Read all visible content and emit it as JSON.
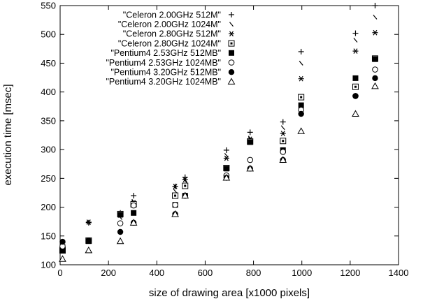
{
  "chart_data": {
    "type": "scatter",
    "xlabel": "size of drawing area [x1000 pixels]",
    "ylabel": "execution time [msec]",
    "xlim": [
      0,
      1400
    ],
    "ylim": [
      100,
      550
    ],
    "xticks": [
      0,
      200,
      400,
      600,
      800,
      1000,
      1200,
      1400
    ],
    "yticks": [
      100,
      150,
      200,
      250,
      300,
      350,
      400,
      450,
      500,
      550
    ],
    "grid": false,
    "legend_position": "top-left",
    "series": [
      {
        "name": "\"Celeron 2.00GHz 512M\"",
        "marker": "plus",
        "points": [
          [
            10,
            138
          ],
          [
            118,
            173
          ],
          [
            249,
            190
          ],
          [
            304,
            220
          ],
          [
            476,
            236
          ],
          [
            517,
            252
          ],
          [
            688,
            299
          ],
          [
            786,
            330
          ],
          [
            922,
            348
          ],
          [
            997,
            470
          ],
          [
            1222,
            502
          ],
          [
            1303,
            550
          ]
        ]
      },
      {
        "name": "\"Celeron 2.00GHz 1024M\"",
        "marker": "dash",
        "points": [
          [
            10,
            130
          ],
          [
            118,
            173
          ],
          [
            249,
            182
          ],
          [
            304,
            210
          ],
          [
            476,
            228
          ],
          [
            517,
            246
          ],
          [
            688,
            290
          ],
          [
            786,
            320
          ],
          [
            922,
            338
          ],
          [
            997,
            450
          ],
          [
            1222,
            490
          ],
          [
            1303,
            530
          ]
        ]
      },
      {
        "name": "\"Celeron 2.80GHz 512M\"",
        "marker": "asterisk",
        "points": [
          [
            10,
            135
          ],
          [
            118,
            174
          ],
          [
            249,
            186
          ],
          [
            304,
            208
          ],
          [
            476,
            236
          ],
          [
            517,
            248
          ],
          [
            688,
            285
          ],
          [
            786,
            318
          ],
          [
            922,
            328
          ],
          [
            997,
            423
          ],
          [
            1222,
            471
          ],
          [
            1303,
            503
          ]
        ]
      },
      {
        "name": "\"Celeron 2.80GHz 1024M\"",
        "marker": "square-open",
        "points": [
          [
            10,
            125
          ],
          [
            118,
            142
          ],
          [
            249,
            188
          ],
          [
            304,
            205
          ],
          [
            476,
            220
          ],
          [
            517,
            237
          ],
          [
            688,
            268
          ],
          [
            786,
            314
          ],
          [
            922,
            315
          ],
          [
            997,
            391
          ],
          [
            1222,
            409
          ],
          [
            1303,
            458
          ]
        ]
      },
      {
        "name": "\"Pentium4 2.53GHz 512MB\"",
        "marker": "square-filled",
        "points": [
          [
            10,
            125
          ],
          [
            118,
            141
          ],
          [
            249,
            187
          ],
          [
            304,
            190
          ],
          [
            476,
            204
          ],
          [
            517,
            220
          ],
          [
            688,
            267
          ],
          [
            786,
            313
          ],
          [
            922,
            299
          ],
          [
            997,
            377
          ],
          [
            1222,
            424
          ],
          [
            1303,
            457
          ]
        ]
      },
      {
        "name": "\"Pentium4 2.53GHz 1024MB\"",
        "marker": "circle-open",
        "points": [
          [
            10,
            132
          ],
          [
            118,
            142
          ],
          [
            249,
            172
          ],
          [
            304,
            203
          ],
          [
            476,
            204
          ],
          [
            517,
            220
          ],
          [
            688,
            255
          ],
          [
            786,
            282
          ],
          [
            922,
            296
          ],
          [
            997,
            369
          ],
          [
            1222,
            393
          ],
          [
            1303,
            439
          ]
        ]
      },
      {
        "name": "\"Pentium4 3.20GHz 512MB\"",
        "marker": "circle-filled",
        "points": [
          [
            10,
            140
          ],
          [
            118,
            142
          ],
          [
            249,
            157
          ],
          [
            304,
            173
          ],
          [
            476,
            188
          ],
          [
            517,
            220
          ],
          [
            688,
            251
          ],
          [
            786,
            267
          ],
          [
            922,
            282
          ],
          [
            997,
            362
          ],
          [
            1222,
            393
          ],
          [
            1303,
            424
          ]
        ]
      },
      {
        "name": "\"Pentium4 3.20GHz 1024MB\"",
        "marker": "triangle-open",
        "points": [
          [
            10,
            110
          ],
          [
            118,
            125
          ],
          [
            249,
            141
          ],
          [
            304,
            173
          ],
          [
            476,
            188
          ],
          [
            517,
            220
          ],
          [
            688,
            251
          ],
          [
            786,
            267
          ],
          [
            922,
            282
          ],
          [
            997,
            332
          ],
          [
            1222,
            362
          ],
          [
            1303,
            410
          ]
        ]
      }
    ]
  }
}
